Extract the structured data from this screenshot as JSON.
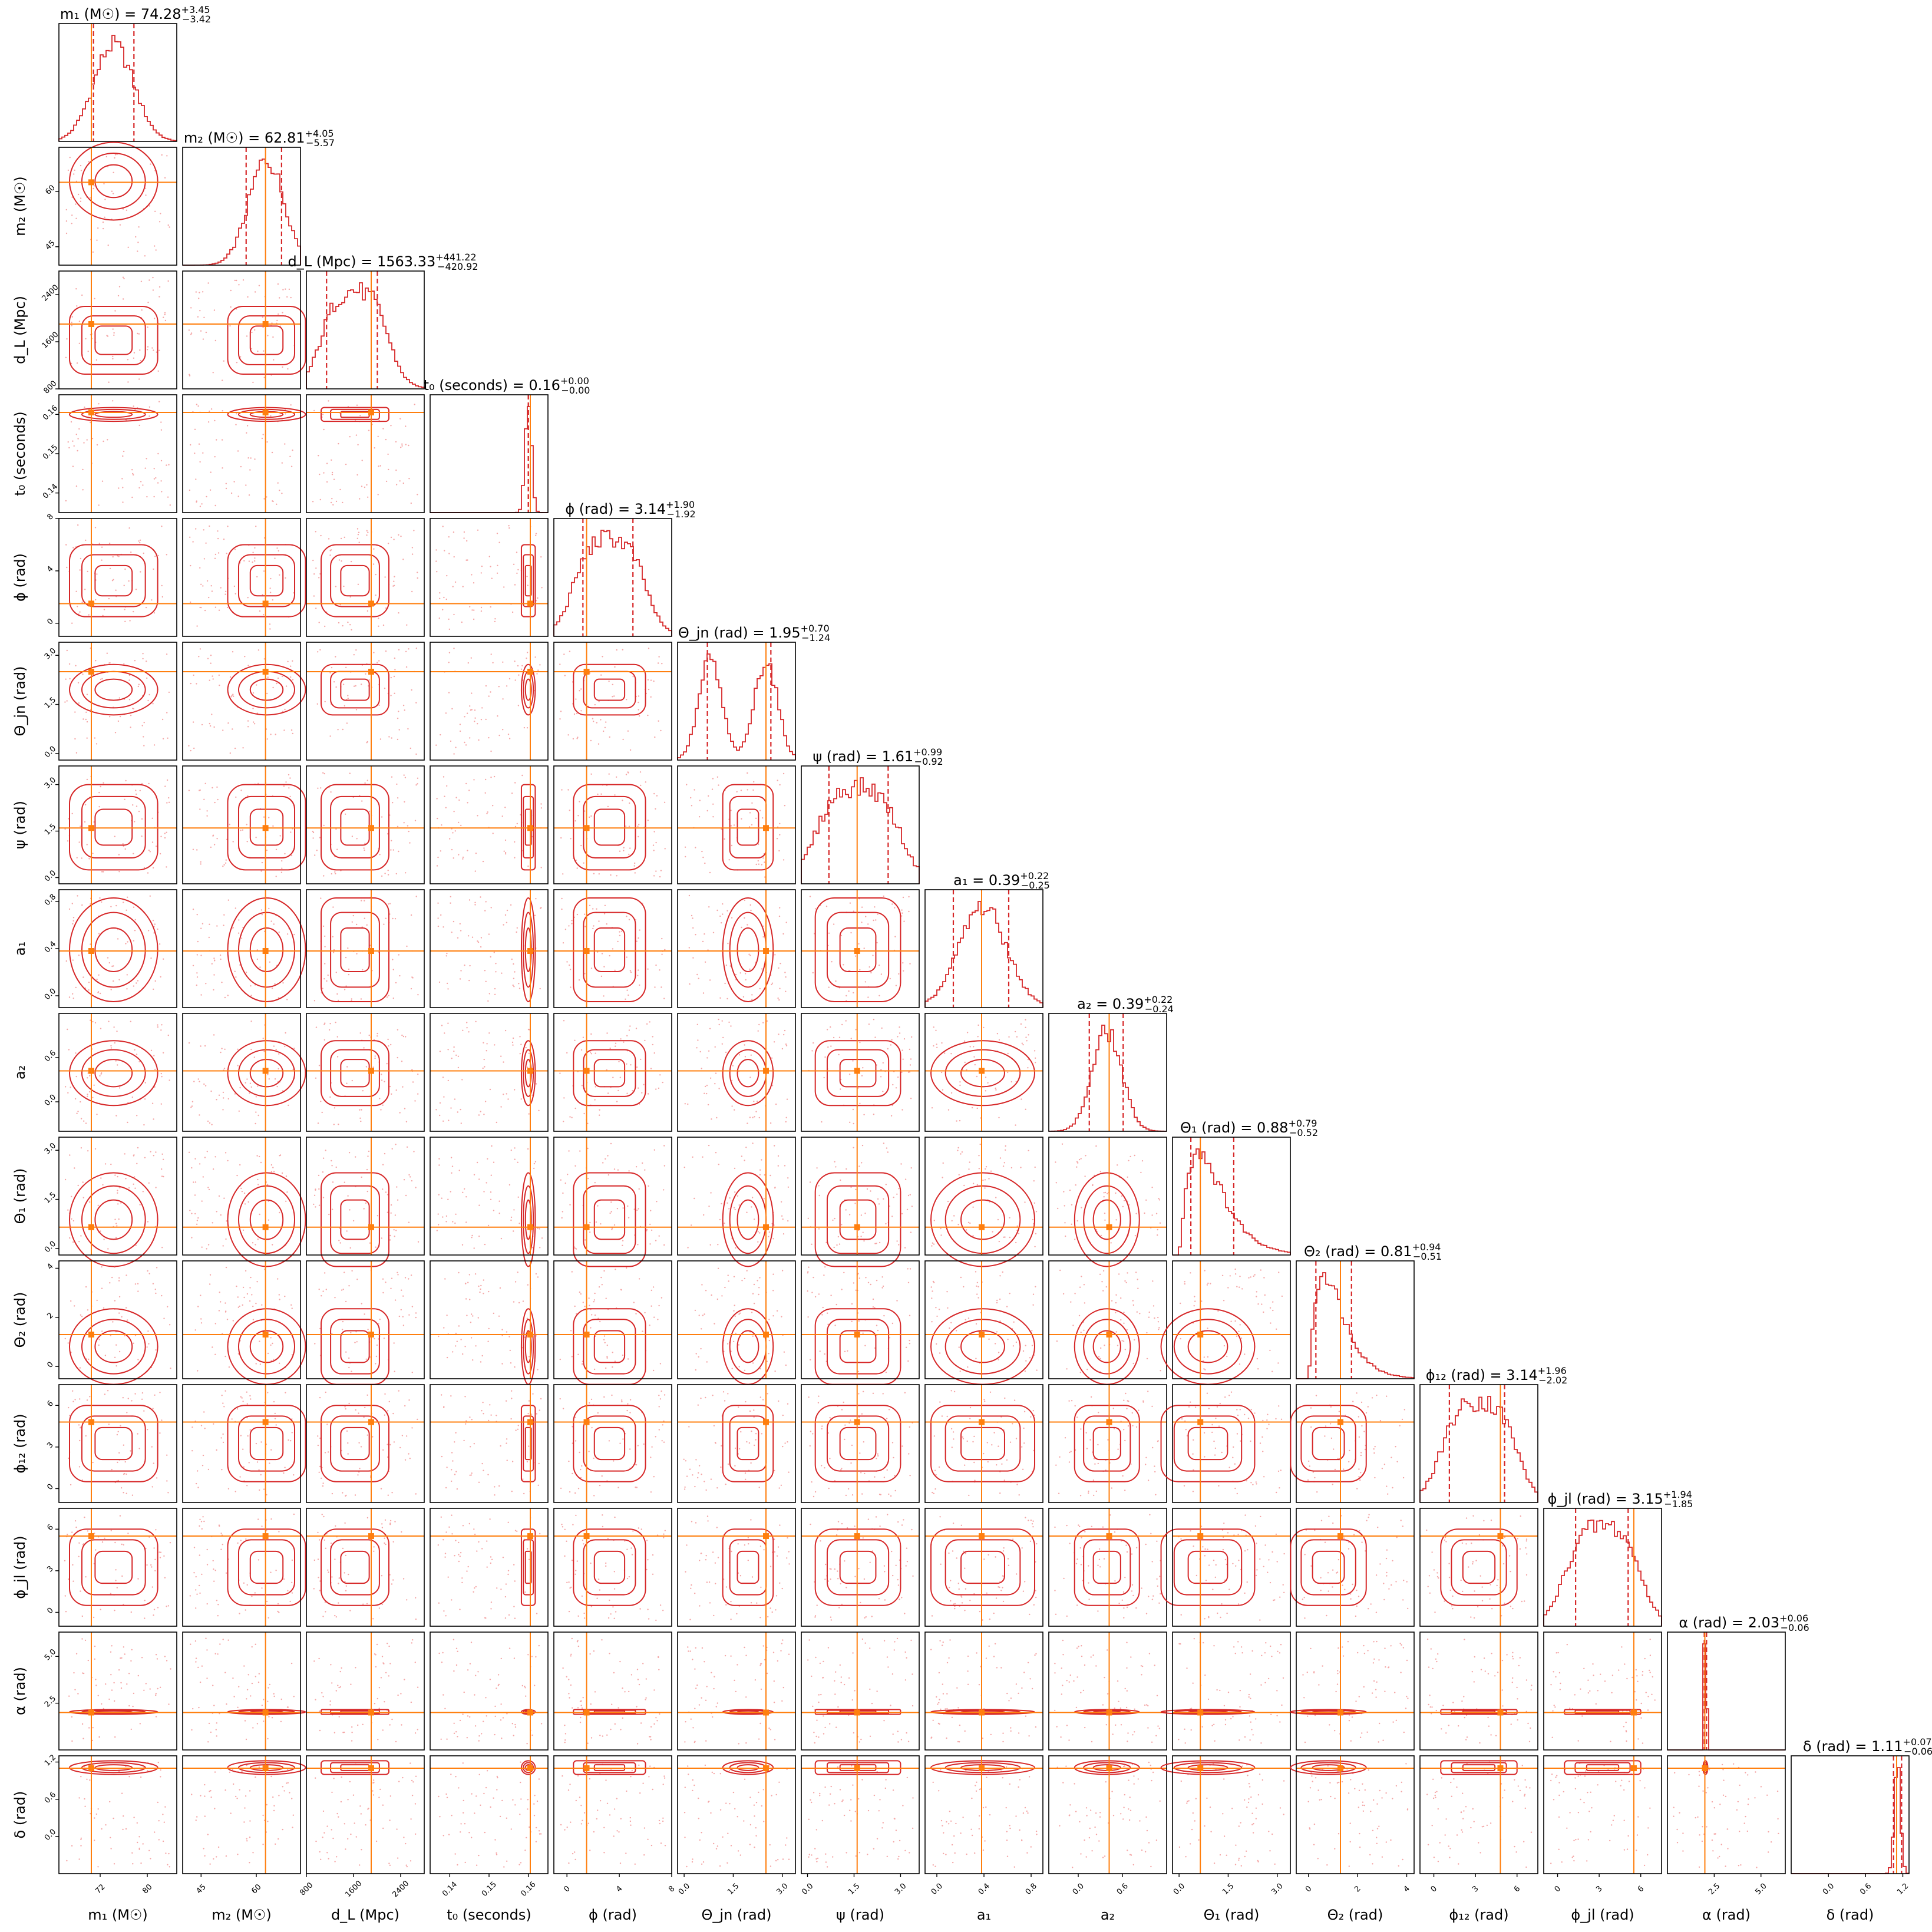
{
  "chart_data": {
    "type": "corner",
    "colors": {
      "samples": "#d62728",
      "truth": "#ff7f0e",
      "frame": "#000000"
    },
    "parameters": [
      {
        "id": "m1",
        "label": "m₁ (M☉)",
        "title": "m₁ (M☉) = 74.28",
        "median": 74.28,
        "upper": "+3.45",
        "lower": "−3.42",
        "truth": 70.5,
        "range": [
          65,
          85
        ],
        "ticks": [
          72,
          80
        ],
        "tick_labels": [
          "72",
          "80"
        ],
        "dist": "normal",
        "mu": 74.28,
        "sd": 3.4
      },
      {
        "id": "m2",
        "label": "m₂ (M☉)",
        "title": "m₂ (M☉) = 62.81",
        "median": 62.81,
        "upper": "+4.05",
        "lower": "−5.57",
        "truth": 62.5,
        "range": [
          40,
          72
        ],
        "ticks": [
          45,
          60
        ],
        "tick_labels": [
          "45",
          "60"
        ],
        "dist": "normal",
        "mu": 62.8,
        "sd": 4.8
      },
      {
        "id": "dL",
        "label": "d_L (Mpc)",
        "title": "d_L (Mpc) = 1563.33",
        "median": 1563.33,
        "upper": "+441.22",
        "lower": "−420.92",
        "truth": 1900,
        "range": [
          800,
          2800
        ],
        "ticks": [
          800,
          1600,
          2400
        ],
        "tick_labels": [
          "800",
          "1600",
          "2400"
        ],
        "dist": "uniform",
        "lo": 1050,
        "hi": 2200
      },
      {
        "id": "t0",
        "label": "t₀ (seconds)",
        "title": "t₀ (seconds) = 0.16",
        "median": 0.16,
        "upper": "+0.00",
        "lower": "−0.00",
        "truth": 0.1605,
        "range": [
          0.135,
          0.165
        ],
        "ticks": [
          0.14,
          0.15,
          0.16
        ],
        "tick_labels": [
          "0.14",
          "0.15",
          "0.16"
        ],
        "dist": "normal",
        "mu": 0.16,
        "sd": 0.0008
      },
      {
        "id": "phi",
        "label": "ϕ (rad)",
        "title": "ϕ (rad) = 3.14",
        "median": 3.14,
        "upper": "+1.90",
        "lower": "−1.92",
        "truth": 1.5,
        "range": [
          -1,
          8
        ],
        "ticks": [
          0,
          4,
          8
        ],
        "tick_labels": [
          "0",
          "4",
          "8"
        ],
        "dist": "uniform",
        "lo": 0.5,
        "hi": 6.0
      },
      {
        "id": "thjn",
        "label": "Θ_jn (rad)",
        "title": "Θ_jn (rad) = 1.95",
        "median": 1.95,
        "upper": "+0.70",
        "lower": "−1.24",
        "truth": 2.5,
        "range": [
          -0.2,
          3.4
        ],
        "ticks": [
          0,
          1.5,
          3
        ],
        "tick_labels": [
          "0.0",
          "1.5",
          "3.0"
        ],
        "dist": "bimodal",
        "m1": 0.8,
        "m2": 2.5,
        "sd": 0.35
      },
      {
        "id": "psi",
        "label": "ψ (rad)",
        "title": "ψ (rad) = 1.61",
        "median": 1.61,
        "upper": "+0.99",
        "lower": "−0.92",
        "truth": 1.6,
        "range": [
          -0.2,
          3.6
        ],
        "ticks": [
          0,
          1.5,
          3
        ],
        "tick_labels": [
          "0.0",
          "1.5",
          "3.0"
        ],
        "dist": "uniform",
        "lo": 0.25,
        "hi": 3.0
      },
      {
        "id": "a1",
        "label": "a₁",
        "title": "a₁ = 0.39",
        "median": 0.39,
        "upper": "+0.22",
        "lower": "−0.25",
        "truth": 0.38,
        "range": [
          -0.1,
          0.9
        ],
        "ticks": [
          0,
          0.4,
          0.8
        ],
        "tick_labels": [
          "0.0",
          "0.4",
          "0.8"
        ],
        "dist": "normal",
        "mu": 0.39,
        "sd": 0.2
      },
      {
        "id": "a2",
        "label": "a₂",
        "title": "a₂ = 0.39",
        "median": 0.39,
        "upper": "+0.22",
        "lower": "−0.24",
        "truth": 0.42,
        "range": [
          -0.4,
          1.2
        ],
        "ticks": [
          0,
          0.6
        ],
        "tick_labels": [
          "0.0",
          "0.6"
        ],
        "dist": "normal",
        "mu": 0.39,
        "sd": 0.2
      },
      {
        "id": "th1",
        "label": "Θ₁ (rad)",
        "title": "Θ₁ (rad) = 0.88",
        "median": 0.88,
        "upper": "+0.79",
        "lower": "−0.52",
        "truth": 0.65,
        "range": [
          -0.2,
          3.4
        ],
        "ticks": [
          0,
          1.5,
          3
        ],
        "tick_labels": [
          "0.0",
          "1.5",
          "3.0"
        ],
        "dist": "skew",
        "mu": 0.88,
        "sd": 0.65
      },
      {
        "id": "th2",
        "label": "Θ₂ (rad)",
        "title": "Θ₂ (rad) = 0.81",
        "median": 0.81,
        "upper": "+0.94",
        "lower": "−0.51",
        "truth": 1.3,
        "range": [
          -0.5,
          4.3
        ],
        "ticks": [
          0,
          2,
          4
        ],
        "tick_labels": [
          "0",
          "2",
          "4"
        ],
        "dist": "skew",
        "mu": 0.81,
        "sd": 0.7
      },
      {
        "id": "phi12",
        "label": "ϕ₁₂ (rad)",
        "title": "ϕ₁₂ (rad) = 3.14",
        "median": 3.14,
        "upper": "+1.96",
        "lower": "−2.02",
        "truth": 4.8,
        "range": [
          -1,
          7.5
        ],
        "ticks": [
          0,
          3,
          6
        ],
        "tick_labels": [
          "0",
          "3",
          "6"
        ],
        "dist": "uniform",
        "lo": 0.5,
        "hi": 6.0
      },
      {
        "id": "phijl",
        "label": "ϕ_jl (rad)",
        "title": "ϕ_jl (rad) = 3.15",
        "median": 3.15,
        "upper": "+1.94",
        "lower": "−1.85",
        "truth": 5.5,
        "range": [
          -1,
          7.5
        ],
        "ticks": [
          0,
          3,
          6
        ],
        "tick_labels": [
          "0",
          "3",
          "6"
        ],
        "dist": "uniform",
        "lo": 0.5,
        "hi": 6.0
      },
      {
        "id": "alpha",
        "label": "α (rad)",
        "title": "α (rad) = 2.03",
        "median": 2.03,
        "upper": "+0.06",
        "lower": "−0.06",
        "truth": 2.0,
        "range": [
          0,
          6.3
        ],
        "ticks": [
          2.5,
          5
        ],
        "tick_labels": [
          "2.5",
          "5.0"
        ],
        "dist": "normal",
        "mu": 2.03,
        "sd": 0.05
      },
      {
        "id": "delta",
        "label": "δ (rad)",
        "title": "δ (rad) = 1.11",
        "median": 1.11,
        "upper": "+0.07",
        "lower": "−0.06",
        "truth": 1.1,
        "range": [
          -0.6,
          1.3
        ],
        "ticks": [
          0,
          0.6,
          1.2
        ],
        "tick_labels": [
          "0.0",
          "0.6",
          "1.2"
        ],
        "dist": "normal",
        "mu": 1.11,
        "sd": 0.05
      }
    ]
  }
}
